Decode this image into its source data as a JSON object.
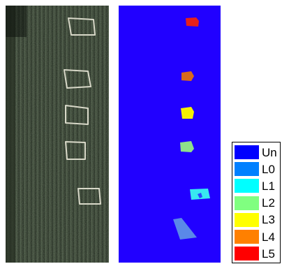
{
  "figure": {
    "aerial_image": {
      "description_icon": "aerial-crop-field-photo",
      "colors": {
        "base": "#2f3b2a",
        "row_dark": "#1f2a1c",
        "row_light": "#4a5a44",
        "plot_outline": "#d8d8c8"
      }
    },
    "label_map": {
      "background_class": "Un",
      "colors": {
        "background": "#2100ff"
      }
    },
    "legend": {
      "items": [
        {
          "label": "Un",
          "color": "#0000ff"
        },
        {
          "label": "L0",
          "color": "#0080ff"
        },
        {
          "label": "L1",
          "color": "#00ffff"
        },
        {
          "label": "L2",
          "color": "#80ff80"
        },
        {
          "label": "L3",
          "color": "#ffff00"
        },
        {
          "label": "L4",
          "color": "#ff8000"
        },
        {
          "label": "L5",
          "color": "#ff0000"
        }
      ]
    },
    "region_colors": {
      "L5": "#e8201a",
      "L4": "#d86a1a",
      "L3": "#f4f000",
      "L2": "#8ee08a",
      "L1": "#38e8f0",
      "L0": "#5a88e8"
    }
  }
}
